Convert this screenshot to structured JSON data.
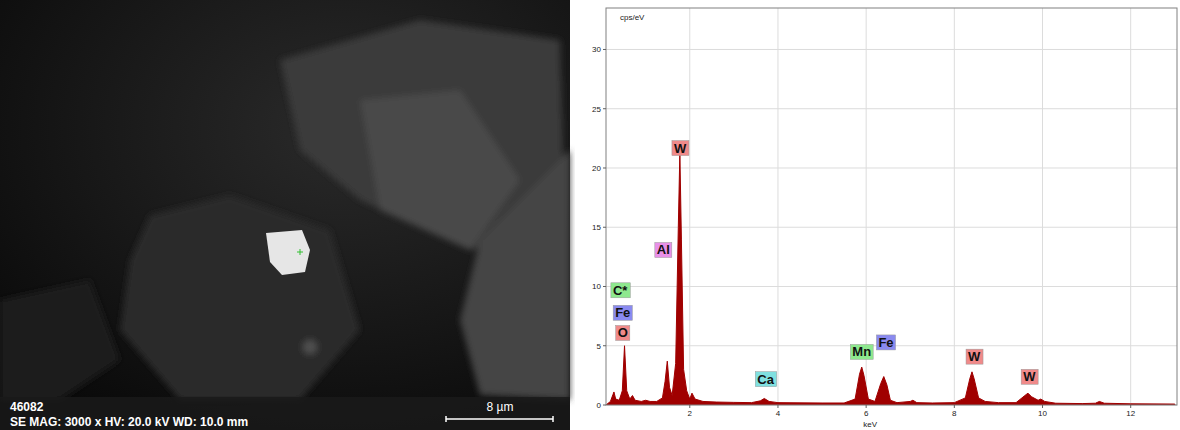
{
  "micrograph": {
    "id": "46082",
    "info": "SE  MAG: 3000 x  HV: 20.0 kV  WD: 10.0 mm",
    "scale_bar": "8 µm"
  },
  "chart_data": {
    "type": "area",
    "color": "#a00000",
    "xlabel": "keV",
    "ylabel": "cps/eV",
    "xlim": [
      0.1,
      13.05
    ],
    "ylim": [
      0,
      33.5
    ],
    "xticks": [
      2,
      4,
      6,
      8,
      10,
      12
    ],
    "yticks": [
      0,
      5,
      10,
      15,
      20,
      25,
      30
    ],
    "grid": true,
    "x": [
      0.1,
      0.2,
      0.26,
      0.28,
      0.32,
      0.4,
      0.47,
      0.52,
      0.57,
      0.64,
      0.7,
      0.76,
      0.9,
      1.0,
      1.1,
      1.25,
      1.38,
      1.44,
      1.49,
      1.54,
      1.6,
      1.68,
      1.74,
      1.775,
      1.81,
      1.86,
      1.93,
      2.0,
      2.05,
      2.12,
      2.3,
      2.6,
      3.0,
      3.4,
      3.6,
      3.69,
      3.8,
      4.0,
      4.5,
      5.0,
      5.5,
      5.75,
      5.85,
      5.9,
      5.95,
      6.05,
      6.2,
      6.33,
      6.4,
      6.47,
      6.55,
      6.7,
      7.0,
      7.06,
      7.15,
      7.5,
      8.0,
      8.25,
      8.35,
      8.4,
      8.45,
      8.55,
      8.7,
      9.0,
      9.4,
      9.6,
      9.67,
      9.75,
      9.9,
      9.96,
      10.05,
      10.3,
      10.9,
      11.2,
      11.29,
      11.4,
      12.0,
      13.0
    ],
    "values": [
      0,
      0.3,
      0.9,
      1.1,
      0.5,
      0.4,
      1.2,
      5.0,
      1.2,
      0.5,
      0.8,
      0.4,
      0.3,
      0.4,
      0.3,
      0.3,
      0.6,
      2.0,
      3.7,
      1.5,
      0.8,
      3.5,
      15,
      21.3,
      14,
      3,
      1.2,
      0.5,
      1.0,
      0.5,
      0.3,
      0.25,
      0.22,
      0.2,
      0.35,
      0.55,
      0.3,
      0.2,
      0.18,
      0.17,
      0.17,
      0.5,
      2.6,
      3.2,
      2.5,
      0.5,
      0.3,
      1.8,
      2.4,
      1.7,
      0.4,
      0.2,
      0.3,
      0.4,
      0.2,
      0.17,
      0.2,
      0.6,
      2.2,
      2.8,
      2.2,
      0.6,
      0.3,
      0.2,
      0.2,
      0.8,
      1.0,
      0.7,
      0.4,
      0.5,
      0.3,
      0.15,
      0.12,
      0.15,
      0.3,
      0.15,
      0.1,
      0.08
    ],
    "annotations": [
      {
        "text": "C*",
        "x": 0.42,
        "y": 9.3,
        "color": "#8ee88e"
      },
      {
        "text": "Fe",
        "x": 0.48,
        "y": 7.4,
        "color": "#8a8af0"
      },
      {
        "text": "O",
        "x": 0.48,
        "y": 5.7,
        "color": "#f08a8a"
      },
      {
        "text": "Al",
        "x": 1.4,
        "y": 12.7,
        "color": "#e890e8"
      },
      {
        "text": "W",
        "x": 1.78,
        "y": 21.3,
        "color": "#f08a8a"
      },
      {
        "text": "Ca",
        "x": 3.72,
        "y": 1.8,
        "color": "#80e0e0"
      },
      {
        "text": "Mn",
        "x": 5.9,
        "y": 4.1,
        "color": "#8ee88e"
      },
      {
        "text": "Fe",
        "x": 6.45,
        "y": 4.9,
        "color": "#8a8af0"
      },
      {
        "text": "W",
        "x": 8.45,
        "y": 3.7,
        "color": "#f08a8a"
      },
      {
        "text": "W",
        "x": 9.7,
        "y": 2.0,
        "color": "#f08a8a"
      }
    ]
  }
}
